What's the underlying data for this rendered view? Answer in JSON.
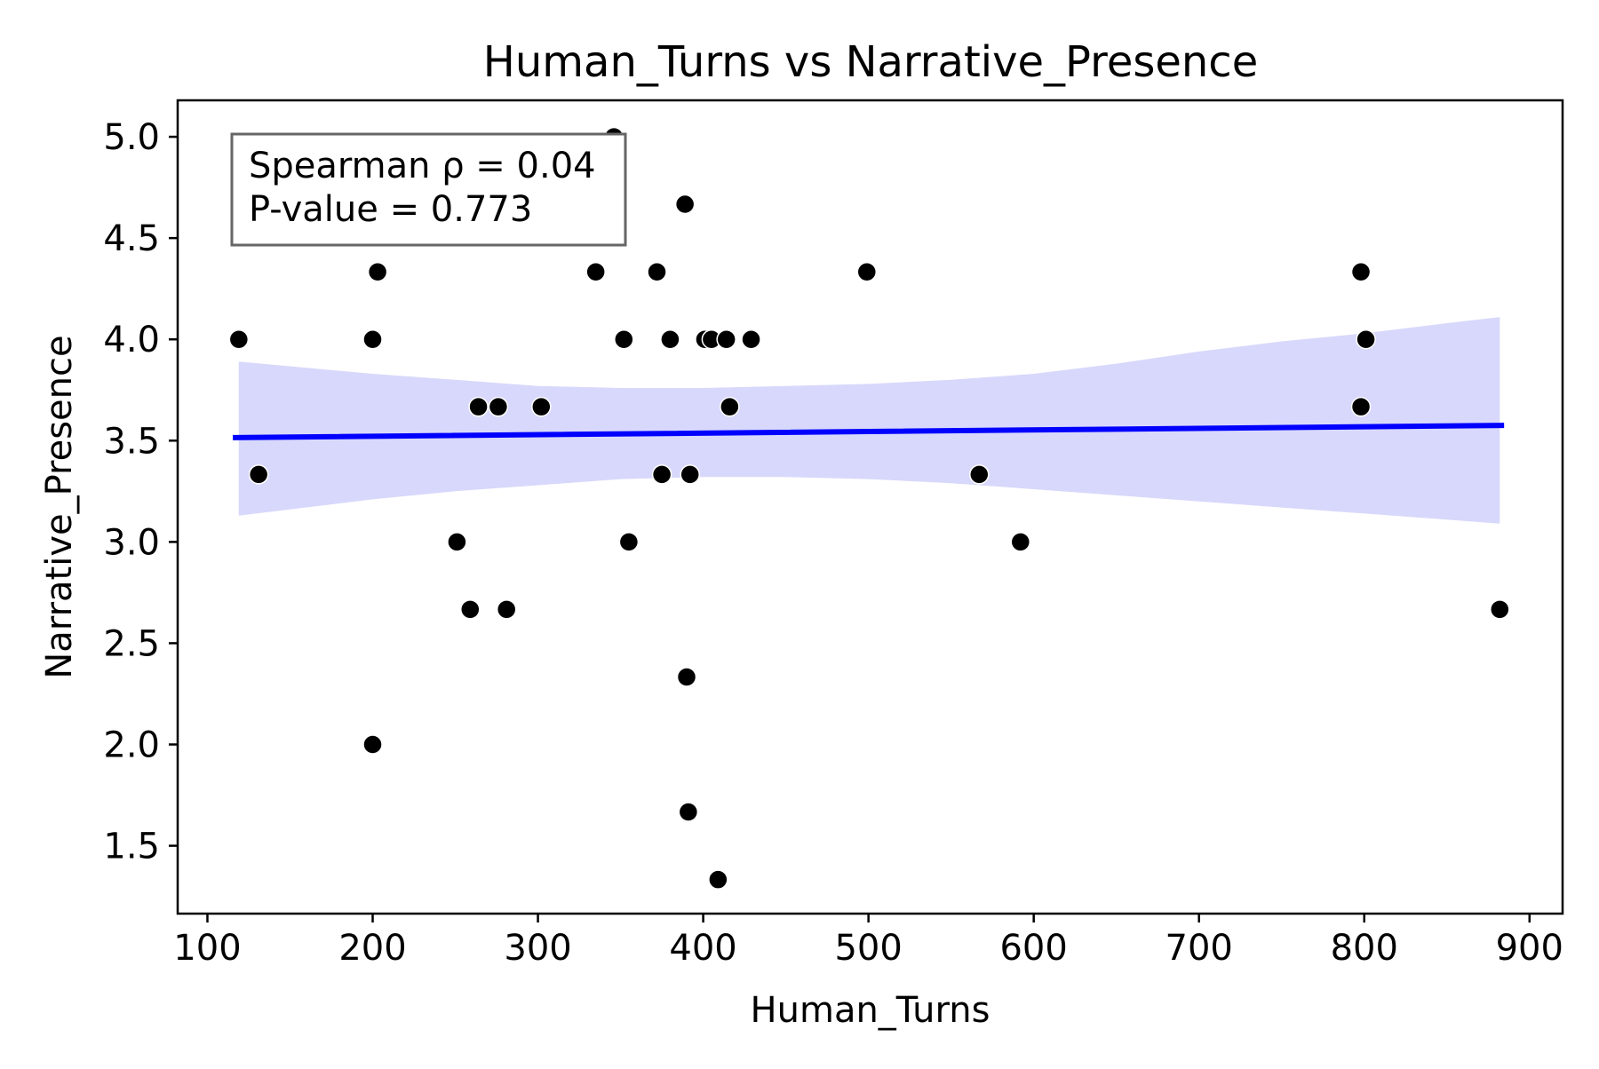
{
  "chart_data": {
    "type": "scatter",
    "title": "Human_Turns vs Narrative_Presence",
    "xlabel": "Human_Turns",
    "ylabel": "Narrative_Presence",
    "xlim": [
      82,
      920
    ],
    "ylim": [
      1.165,
      5.18
    ],
    "xticks": [
      100,
      200,
      300,
      400,
      500,
      600,
      700,
      800,
      900
    ],
    "yticks": [
      1.5,
      2.0,
      2.5,
      3.0,
      3.5,
      4.0,
      4.5,
      5.0
    ],
    "xtick_labels": [
      "100",
      "200",
      "300",
      "400",
      "500",
      "600",
      "700",
      "800",
      "900"
    ],
    "ytick_labels": [
      "1.5",
      "2.0",
      "2.5",
      "3.0",
      "3.5",
      "4.0",
      "4.5",
      "5.0"
    ],
    "grid": false,
    "colors": {
      "points": "#000000",
      "regression_line": "#0000ff",
      "confidence_band": "#d8d8fc"
    },
    "points": [
      {
        "x": 119,
        "y": 4.0
      },
      {
        "x": 131,
        "y": 3.333
      },
      {
        "x": 200,
        "y": 4.0
      },
      {
        "x": 203,
        "y": 4.333
      },
      {
        "x": 200,
        "y": 2.0
      },
      {
        "x": 251,
        "y": 3.0
      },
      {
        "x": 259,
        "y": 2.667
      },
      {
        "x": 264,
        "y": 3.667
      },
      {
        "x": 276,
        "y": 3.667
      },
      {
        "x": 281,
        "y": 2.667
      },
      {
        "x": 302,
        "y": 3.667
      },
      {
        "x": 335,
        "y": 4.333
      },
      {
        "x": 346,
        "y": 5.0
      },
      {
        "x": 352,
        "y": 4.0
      },
      {
        "x": 355,
        "y": 3.0
      },
      {
        "x": 372,
        "y": 4.333
      },
      {
        "x": 375,
        "y": 3.333
      },
      {
        "x": 380,
        "y": 4.0
      },
      {
        "x": 389,
        "y": 4.667
      },
      {
        "x": 390,
        "y": 2.333
      },
      {
        "x": 391,
        "y": 1.667
      },
      {
        "x": 392,
        "y": 3.333
      },
      {
        "x": 401,
        "y": 4.0
      },
      {
        "x": 405,
        "y": 4.0
      },
      {
        "x": 409,
        "y": 1.333
      },
      {
        "x": 414,
        "y": 4.0
      },
      {
        "x": 416,
        "y": 3.667
      },
      {
        "x": 429,
        "y": 4.0
      },
      {
        "x": 499,
        "y": 4.333
      },
      {
        "x": 567,
        "y": 3.333
      },
      {
        "x": 592,
        "y": 3.0
      },
      {
        "x": 798,
        "y": 4.333
      },
      {
        "x": 798,
        "y": 3.667
      },
      {
        "x": 801,
        "y": 4.0
      },
      {
        "x": 882,
        "y": 2.667
      }
    ],
    "regression": {
      "x_start": 117,
      "y_start": 3.515,
      "x_end": 883,
      "y_end": 3.575,
      "band": [
        {
          "x": 119,
          "low": 3.13,
          "high": 3.89
        },
        {
          "x": 200,
          "low": 3.21,
          "high": 3.83
        },
        {
          "x": 250,
          "low": 3.25,
          "high": 3.8
        },
        {
          "x": 300,
          "low": 3.28,
          "high": 3.77
        },
        {
          "x": 350,
          "low": 3.31,
          "high": 3.76
        },
        {
          "x": 400,
          "low": 3.32,
          "high": 3.76
        },
        {
          "x": 450,
          "low": 3.32,
          "high": 3.77
        },
        {
          "x": 500,
          "low": 3.31,
          "high": 3.78
        },
        {
          "x": 550,
          "low": 3.29,
          "high": 3.8
        },
        {
          "x": 600,
          "low": 3.26,
          "high": 3.83
        },
        {
          "x": 650,
          "low": 3.23,
          "high": 3.88
        },
        {
          "x": 700,
          "low": 3.2,
          "high": 3.94
        },
        {
          "x": 750,
          "low": 3.17,
          "high": 3.99
        },
        {
          "x": 800,
          "low": 3.14,
          "high": 4.03
        },
        {
          "x": 850,
          "low": 3.11,
          "high": 4.08
        },
        {
          "x": 882,
          "low": 3.09,
          "high": 4.11
        }
      ]
    },
    "annotation": {
      "lines": [
        "Spearman ρ = 0.04",
        "P-value = 0.773"
      ],
      "placement": "top-left"
    }
  }
}
